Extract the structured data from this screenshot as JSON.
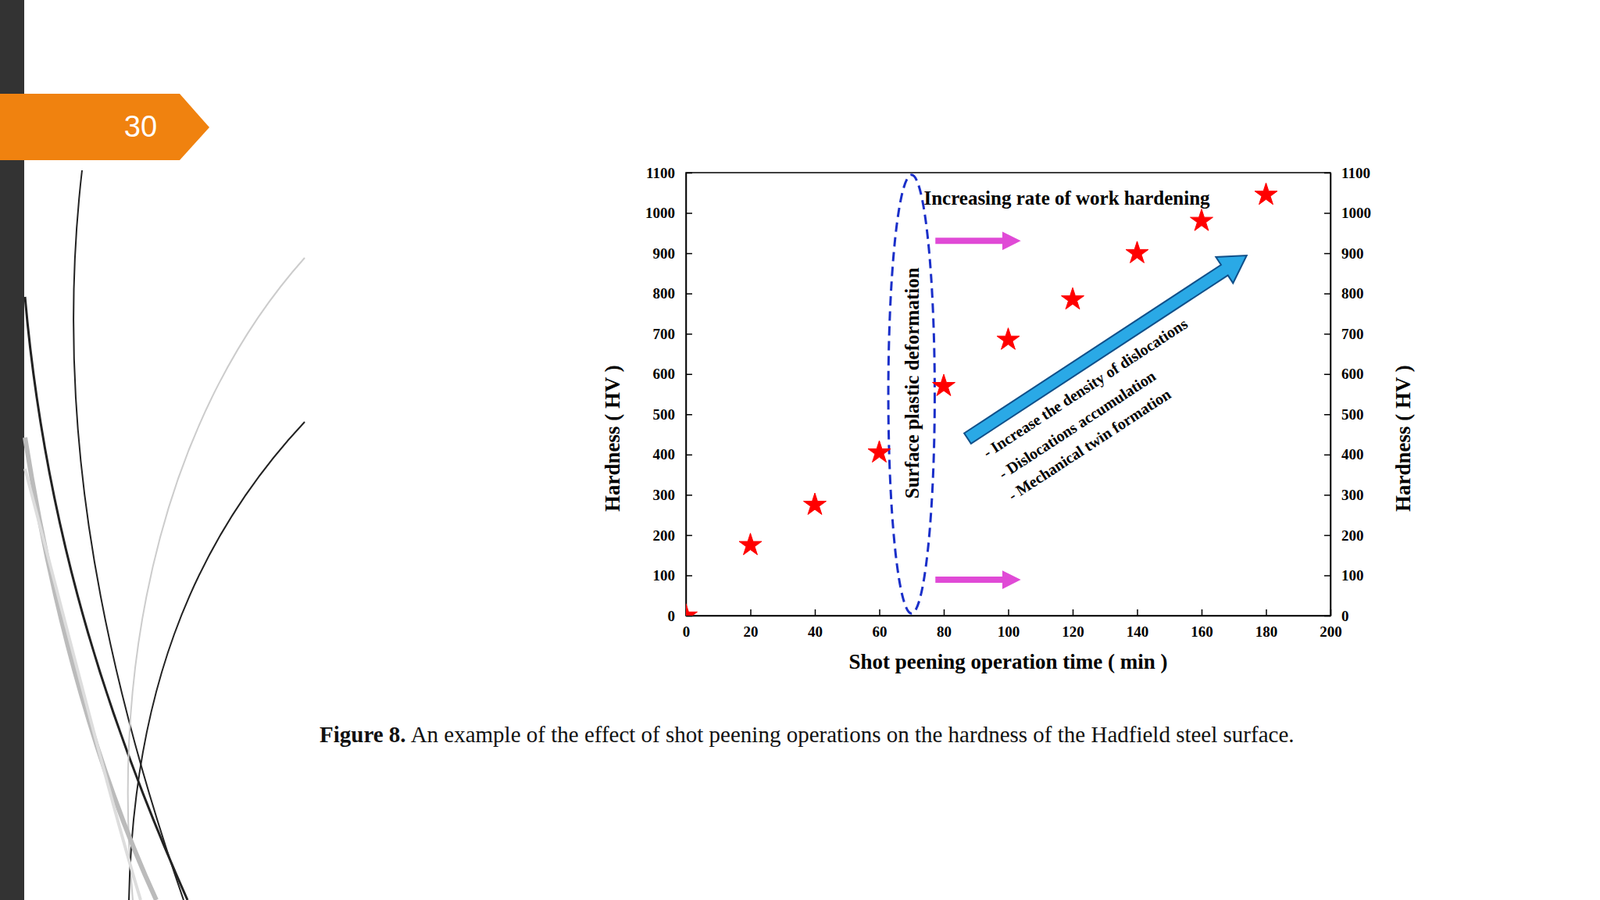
{
  "page": {
    "number": "30"
  },
  "chart_data": {
    "type": "scatter",
    "caption_label": "Figure 8.",
    "caption": "An example of the effect of shot peening operations on the hardness of the Hadfield steel surface.",
    "xlabel": "Shot peening operation time ( min )",
    "ylabel": "Hardness ( HV )",
    "y2label": "Hardness ( HV )",
    "x": [
      0,
      20,
      40,
      60,
      80,
      100,
      120,
      140,
      160,
      180
    ],
    "values": [
      0,
      175,
      275,
      405,
      570,
      685,
      785,
      900,
      980,
      1045
    ],
    "color": "#ff0000",
    "marker": "star",
    "xlim": [
      0,
      200
    ],
    "xticks": [
      0,
      20,
      40,
      60,
      80,
      100,
      120,
      140,
      160,
      180,
      200
    ],
    "ylim": [
      0,
      1100
    ],
    "yticks": [
      0,
      100,
      200,
      300,
      400,
      500,
      600,
      700,
      800,
      900,
      1000,
      1100
    ],
    "y2lim": [
      0,
      1100
    ],
    "y2ticks": [
      0,
      100,
      200,
      300,
      400,
      500,
      600,
      700,
      800,
      900,
      1000,
      1100
    ],
    "grid": false,
    "annotations": [
      "Increasing rate of work hardening",
      "Surface plastic deformation",
      "- Increase the density of dislocations",
      "- Dislocations accumulation",
      "- Mechanical twin formation"
    ]
  }
}
